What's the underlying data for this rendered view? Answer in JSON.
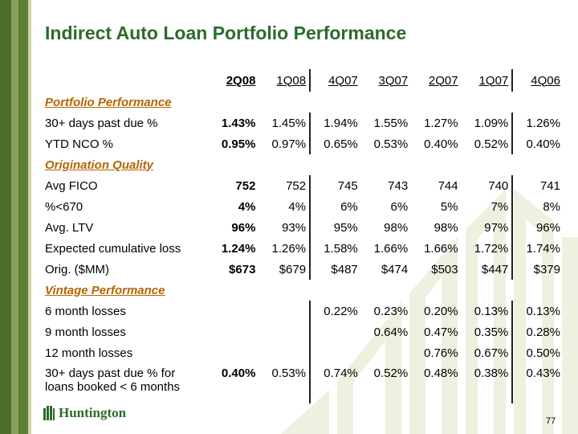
{
  "title": "Indirect Auto Loan Portfolio Performance",
  "columns": [
    "2Q08",
    "1Q08",
    "4Q07",
    "3Q07",
    "2Q07",
    "1Q07",
    "4Q06"
  ],
  "sections": {
    "portfolio": "Portfolio Performance",
    "origination": "Origination Quality",
    "vintage": "Vintage Performance"
  },
  "rows": {
    "dpd30": {
      "label": "30+ days past due %",
      "values": [
        "1.43%",
        "1.45%",
        "1.94%",
        "1.55%",
        "1.27%",
        "1.09%",
        "1.26%"
      ]
    },
    "ytd_nco": {
      "label": "YTD NCO %",
      "values": [
        "0.95%",
        "0.97%",
        "0.65%",
        "0.53%",
        "0.40%",
        "0.52%",
        "0.40%"
      ]
    },
    "avg_fico": {
      "label": "Avg FICO",
      "values": [
        "752",
        "752",
        "745",
        "743",
        "744",
        "740",
        "741"
      ]
    },
    "pct_lt670": {
      "label": "%<670",
      "values": [
        "4%",
        "4%",
        "6%",
        "6%",
        "5%",
        "7%",
        "8%"
      ]
    },
    "avg_ltv": {
      "label": "Avg. LTV",
      "values": [
        "96%",
        "93%",
        "95%",
        "98%",
        "98%",
        "97%",
        "96%"
      ]
    },
    "exp_loss": {
      "label": "Expected cumulative loss",
      "values": [
        "1.24%",
        "1.26%",
        "1.58%",
        "1.66%",
        "1.66%",
        "1.72%",
        "1.74%"
      ]
    },
    "orig": {
      "label": "Orig. ($MM)",
      "values": [
        "$673",
        "$679",
        "$487",
        "$474",
        "$503",
        "$447",
        "$379"
      ]
    },
    "m6": {
      "label": "6 month losses",
      "values": [
        "",
        "",
        "0.22%",
        "0.23%",
        "0.20%",
        "0.13%",
        "0.13%"
      ]
    },
    "m9": {
      "label": "9 month losses",
      "values": [
        "",
        "",
        "",
        "0.64%",
        "0.47%",
        "0.35%",
        "0.28%"
      ]
    },
    "m12": {
      "label": "12 month losses",
      "values": [
        "",
        "",
        "",
        "",
        "0.76%",
        "0.67%",
        "0.50%"
      ]
    },
    "dpd30_new": {
      "label_line1": "30+ days past due % for",
      "label_line2": "loans booked < 6 months",
      "values": [
        "0.40%",
        "0.53%",
        "0.74%",
        "0.52%",
        "0.48%",
        "0.38%",
        "0.43%"
      ]
    }
  },
  "logo": {
    "text": "Huntington"
  },
  "page_number": "77",
  "colors": {
    "title": "#2b6b2b",
    "section": "#b46500",
    "stripe_dark": "#4e6f2c",
    "watermark": "#eef1e0"
  }
}
